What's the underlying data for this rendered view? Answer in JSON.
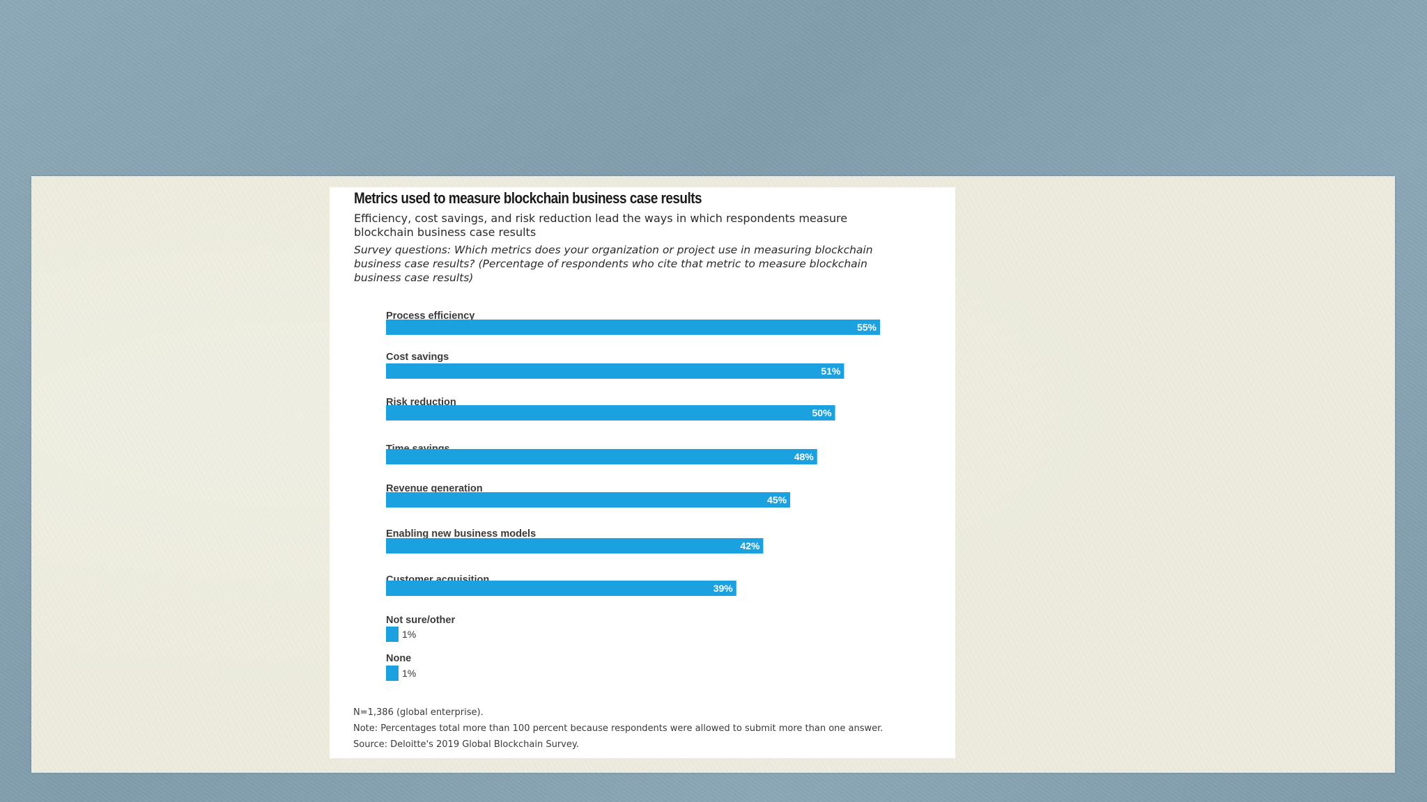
{
  "colors": {
    "background": "#86a3b3",
    "panel": "#ecebdd",
    "card": "#ffffff",
    "bar": "#1ba1df"
  },
  "chart": {
    "title": "Metrics used to measure blockchain business case results",
    "subtitle": "Efficiency, cost savings, and risk reduction lead the ways in which respondents measure blockchain business case results",
    "question": "Survey questions: Which metrics does your organization or project use in measuring blockchain business case results? (Percentage of respondents who cite that metric to measure blockchain business case results)",
    "footnotes": {
      "n": "N=1,386 (global enterprise).",
      "note": "Note: Percentages total more than 100 percent because respondents were allowed to submit more than one answer.",
      "source": "Source: Deloitte's 2019 Global Blockchain Survey."
    }
  },
  "chart_data": {
    "type": "bar",
    "orientation": "horizontal",
    "categories": [
      "Process efficiency",
      "Cost savings",
      "Risk reduction",
      "Time savings",
      "Revenue generation",
      "Enabling new business models",
      "Customer acquisition",
      "Not sure/other",
      "None"
    ],
    "values": [
      55,
      51,
      50,
      48,
      45,
      42,
      39,
      1,
      1
    ],
    "value_labels": [
      "55%",
      "51%",
      "50%",
      "48%",
      "45%",
      "42%",
      "39%",
      "1%",
      "1%"
    ],
    "unit": "%",
    "xlim": [
      0,
      55
    ],
    "grid": false,
    "legend": "none"
  }
}
